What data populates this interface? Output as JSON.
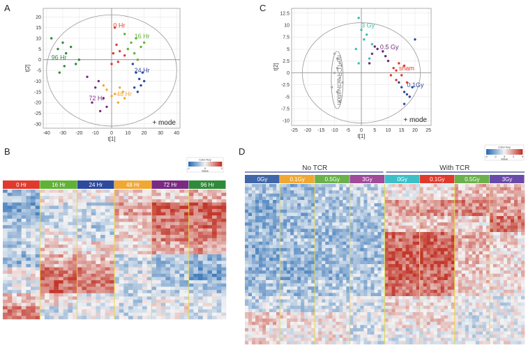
{
  "panels": {
    "A": "A",
    "B": "B",
    "C": "C",
    "D": "D"
  },
  "colors": {
    "h0": "#e03a2e",
    "h16": "#5fb236",
    "h24": "#2e4a9c",
    "h48": "#f0a832",
    "h72": "#7a2a82",
    "h96": "#2f8a3a",
    "sham": "#e03a2e",
    "g01": "#2e4a9c",
    "g05": "#6b2a78",
    "g3": "#3cc0b0",
    "notcr": "#aaaaaa",
    "heat_low": "#2a6db5",
    "heat_mid": "#f4f4f4",
    "heat_high": "#c2372a"
  },
  "chart_data": [
    {
      "type": "scatter",
      "panel": "A",
      "xlabel": "t[1]",
      "ylabel": "t[2]",
      "xticks": [
        -40,
        -30,
        -20,
        -10,
        0,
        10,
        20,
        30,
        40
      ],
      "yticks": [
        20,
        15,
        10,
        5,
        0,
        -5,
        -10,
        -15,
        -20,
        -25,
        -30
      ],
      "xlim": [
        -42,
        42
      ],
      "ylim": [
        -32,
        24
      ],
      "annotation": "+ mode",
      "ellipse": {
        "cx": 0,
        "cy": -5,
        "rx": 40,
        "ry": 26
      },
      "series": [
        {
          "name": "0 Hr",
          "color_key": "h0",
          "x": [
            0,
            1,
            3,
            2,
            5,
            8,
            4
          ],
          "y": [
            -2,
            3,
            7,
            15,
            4,
            2,
            -1
          ]
        },
        {
          "name": "16 Hr",
          "color_key": "h16",
          "x": [
            8,
            12,
            15,
            18,
            10,
            14,
            16,
            20
          ],
          "y": [
            12,
            8,
            10,
            6,
            5,
            3,
            0,
            8
          ]
        },
        {
          "name": "24 Hr",
          "color_key": "h24",
          "x": [
            13,
            15,
            17,
            18,
            20,
            14,
            16,
            19
          ],
          "y": [
            -2,
            -6,
            -9,
            -12,
            -10,
            -13,
            -15,
            -6
          ]
        },
        {
          "name": "48 Hr",
          "color_key": "h48",
          "x": [
            -5,
            -3,
            0,
            2,
            4,
            5,
            8,
            7
          ],
          "y": [
            -12,
            -14,
            -17,
            -16,
            -20,
            -13,
            -18,
            -15
          ]
        },
        {
          "name": "72 Hr",
          "color_key": "h72",
          "x": [
            -15,
            -10,
            -8,
            -5,
            -3,
            -7,
            -12
          ],
          "y": [
            -8,
            -13,
            -10,
            -18,
            -22,
            -24,
            -20
          ]
        },
        {
          "name": "96 Hr",
          "color_key": "h96",
          "x": [
            -37,
            -33,
            -30,
            -28,
            -25,
            -22,
            -20,
            -32,
            -29
          ],
          "y": [
            10,
            5,
            8,
            3,
            6,
            -2,
            0,
            -6,
            -3
          ]
        }
      ],
      "labels": [
        {
          "text": "0 Hr",
          "x": 1,
          "y": 15,
          "color_key": "h0"
        },
        {
          "text": "16 Hr",
          "x": 14,
          "y": 10,
          "color_key": "h16"
        },
        {
          "text": "24 Hr",
          "x": 14,
          "y": -6,
          "color_key": "h24"
        },
        {
          "text": "96 Hr",
          "x": -37,
          "y": 0,
          "color_key": "h96"
        },
        {
          "text": "48 Hr",
          "x": 3,
          "y": -17,
          "color_key": "h48"
        },
        {
          "text": "72 Hr",
          "x": -14,
          "y": -19,
          "color_key": "h72"
        }
      ]
    },
    {
      "type": "scatter",
      "panel": "C",
      "xlabel": "t[1]",
      "ylabel": "t[2]",
      "xticks": [
        -25,
        -20,
        -15,
        -10,
        -5,
        0,
        5,
        10,
        15,
        20,
        25
      ],
      "yticks": [
        12.5,
        10,
        7.5,
        5,
        2.5,
        0,
        -2.5,
        -5,
        -7.5,
        -10
      ],
      "xlim": [
        -26,
        26
      ],
      "ylim": [
        -11,
        13.5
      ],
      "annotation": "+ mode",
      "ellipse": {
        "cx": 0,
        "cy": 0,
        "rx": 22,
        "ry": 10.5
      },
      "inner_ellipse": {
        "cx": -9,
        "cy": -1.5,
        "rx": 2.2,
        "ry": 6
      },
      "series": [
        {
          "name": "3 Gy",
          "color_key": "g3",
          "x": [
            -1,
            0,
            2,
            1,
            -2,
            3,
            -1,
            4
          ],
          "y": [
            11.5,
            9,
            8,
            7,
            5,
            3,
            2,
            6
          ]
        },
        {
          "name": "0.5 Gy",
          "color_key": "g05",
          "x": [
            5,
            6,
            8,
            9,
            4,
            3,
            10
          ],
          "y": [
            5.5,
            5,
            4.5,
            3.5,
            4,
            2,
            2.5
          ]
        },
        {
          "name": "sham",
          "color_key": "sham",
          "x": [
            12,
            13,
            14,
            15,
            16,
            13,
            11,
            17
          ],
          "y": [
            1,
            0.5,
            2,
            -0.5,
            1.5,
            -1.5,
            -0.5,
            -2
          ]
        },
        {
          "name": "0.1Gy",
          "color_key": "g01",
          "x": [
            14,
            15,
            16,
            17,
            18,
            16,
            19,
            20
          ],
          "y": [
            -2,
            -3,
            -4,
            -4.5,
            -5,
            -6.5,
            -3,
            7
          ]
        },
        {
          "name": "no TCR activation",
          "color_key": "notcr",
          "x": [
            -10,
            -9,
            -8,
            -9,
            -10,
            -8,
            -7,
            -11,
            -9,
            -8
          ],
          "y": [
            4,
            3,
            2,
            1,
            0,
            -1,
            -2,
            -3,
            -4,
            -6
          ]
        }
      ],
      "labels": [
        {
          "text": "3 Gy",
          "x": 0,
          "y": 9.5,
          "color_key": "g3"
        },
        {
          "text": "0.5 Gy",
          "x": 7,
          "y": 5,
          "color_key": "g05"
        },
        {
          "text": "sham",
          "x": 14,
          "y": 0.5,
          "color_key": "sham"
        },
        {
          "text": "0.1Gy",
          "x": 17,
          "y": -3,
          "color_key": "g01"
        }
      ],
      "group_label": "no TCR activation"
    },
    {
      "type": "heatmap",
      "panel": "B",
      "columns": [
        "0 Hr",
        "16 Hr",
        "24 Hr",
        "48 Hr",
        "72 Hr",
        "96 Hr"
      ],
      "column_color_keys": [
        "h0",
        "h16",
        "h24",
        "h48",
        "h72",
        "h96"
      ],
      "color_key_title": "Color Key",
      "color_key_label": "Value",
      "color_key_ticks": [
        "-2",
        "0",
        "2"
      ],
      "rows": 40,
      "block_means": [
        [
          -0.6,
          0.1,
          0.0,
          0.2,
          0.3,
          0.5
        ],
        [
          -0.8,
          -0.2,
          -0.3,
          0.6,
          1.0,
          1.1
        ],
        [
          -0.5,
          -0.3,
          -0.4,
          0.3,
          0.9,
          1.0
        ],
        [
          -0.3,
          0.0,
          -0.3,
          0.3,
          0.8,
          0.9
        ],
        [
          -0.4,
          0.3,
          0.2,
          0.1,
          0.6,
          0.7
        ],
        [
          -0.6,
          0.5,
          0.4,
          -0.3,
          -0.5,
          -0.6
        ],
        [
          0.1,
          0.9,
          0.8,
          -0.2,
          -0.5,
          -0.8
        ],
        [
          -0.2,
          1.0,
          0.9,
          -0.2,
          -0.4,
          -0.5
        ],
        [
          0.3,
          0.2,
          -0.1,
          -0.3,
          -0.1,
          -0.2
        ],
        [
          0.8,
          -0.2,
          -0.1,
          -0.2,
          0.1,
          -0.3
        ]
      ]
    },
    {
      "type": "heatmap",
      "panel": "D",
      "super_headers": [
        "No TCR",
        "With TCR"
      ],
      "columns": [
        "0Gy",
        "0.1Gy",
        "0.5Gy",
        "3Gy",
        "0Gy",
        "0.1Gy",
        "0.5Gy",
        "3Gy"
      ],
      "column_colors": [
        "#4166a8",
        "#f0a832",
        "#6ab04c",
        "#a04a9a",
        "#3cc0c8",
        "#e03a2e",
        "#6ab04c",
        "#6a4aa8"
      ],
      "color_key_title": "Color Key",
      "color_key_label": "Value",
      "color_key_ticks": [
        "-4",
        "-2",
        "0",
        "2",
        "4"
      ],
      "rows": 50,
      "block_means": [
        [
          -0.5,
          -0.6,
          -0.4,
          -0.3,
          0.1,
          0.2,
          0.4,
          0.5
        ],
        [
          -0.7,
          -0.6,
          -0.5,
          -0.4,
          0.6,
          0.7,
          0.8,
          0.6
        ],
        [
          -0.6,
          -0.6,
          -0.5,
          -0.5,
          0.3,
          0.4,
          0.2,
          0.9
        ],
        [
          -0.6,
          -0.5,
          -0.6,
          -0.5,
          1.0,
          1.0,
          0.5,
          0.2
        ],
        [
          -0.7,
          -0.6,
          -0.5,
          -0.6,
          1.1,
          1.1,
          0.4,
          0.1
        ],
        [
          -0.6,
          -0.7,
          -0.6,
          -0.4,
          1.0,
          1.0,
          0.3,
          0.2
        ],
        [
          -0.5,
          -0.5,
          -0.4,
          -0.4,
          0.9,
          0.9,
          0.2,
          0.1
        ],
        [
          -0.3,
          -0.3,
          -0.2,
          -0.2,
          0.2,
          0.1,
          0.0,
          -0.1
        ],
        [
          0.3,
          0.2,
          0.1,
          -0.2,
          0.1,
          0.2,
          -0.2,
          -0.1
        ],
        [
          0.2,
          0.0,
          0.1,
          -0.2,
          -0.1,
          0.0,
          -0.1,
          0.0
        ]
      ]
    }
  ]
}
